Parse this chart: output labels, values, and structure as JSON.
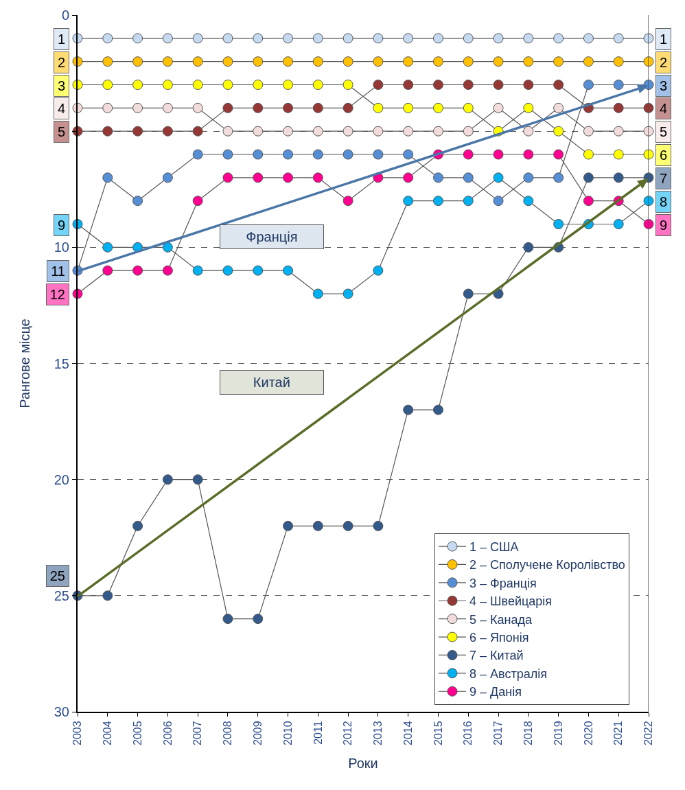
{
  "chart_data": {
    "type": "line",
    "xlabel": "Роки",
    "ylabel": "Рангове місце",
    "x": [
      2003,
      2004,
      2005,
      2006,
      2007,
      2008,
      2009,
      2010,
      2011,
      2012,
      2013,
      2014,
      2015,
      2016,
      2017,
      2018,
      2019,
      2020,
      2021,
      2022
    ],
    "xlim": [
      2003,
      2022
    ],
    "xticks": [
      2003,
      2004,
      2005,
      2006,
      2007,
      2008,
      2009,
      2010,
      2011,
      2012,
      2013,
      2014,
      2015,
      2016,
      2017,
      2018,
      2019,
      2020,
      2021,
      2022
    ],
    "ylim": [
      30,
      0
    ],
    "yticks": [
      0,
      {
        "value": 5,
        "label": null
      },
      10,
      15,
      20,
      25,
      30
    ],
    "grid": "y",
    "legend": "bottom right",
    "marker": "circle",
    "series": [
      {
        "name": "1 – США",
        "color": "#c5d9f1",
        "values": [
          1,
          1,
          1,
          1,
          1,
          1,
          1,
          1,
          1,
          1,
          1,
          1,
          1,
          1,
          1,
          1,
          1,
          1,
          1,
          1
        ],
        "value_labels": [
          "1",
          null,
          null,
          null,
          null,
          null,
          null,
          null,
          null,
          null,
          null,
          null,
          null,
          null,
          null,
          null,
          null,
          null,
          null,
          "1"
        ]
      },
      {
        "name": "2 – Сполучене Королівство",
        "color": "#ffc000",
        "values": [
          2,
          2,
          2,
          2,
          2,
          2,
          2,
          2,
          2,
          2,
          2,
          2,
          2,
          2,
          2,
          2,
          2,
          2,
          2,
          2
        ],
        "value_labels": [
          "2",
          null,
          null,
          null,
          null,
          null,
          null,
          null,
          null,
          null,
          null,
          null,
          null,
          null,
          null,
          null,
          null,
          null,
          null,
          "2"
        ]
      },
      {
        "name": "3 – Франція",
        "color": "#558ed5",
        "values": [
          11,
          7,
          8,
          7,
          6,
          6,
          6,
          6,
          6,
          6,
          6,
          6,
          7,
          7,
          8,
          7,
          7,
          3,
          3,
          3
        ],
        "value_labels": [
          "11",
          null,
          null,
          null,
          null,
          null,
          null,
          null,
          null,
          null,
          null,
          null,
          null,
          null,
          null,
          null,
          null,
          null,
          null,
          "3"
        ]
      },
      {
        "name": "4 – Швейцарія",
        "color": "#953735",
        "values": [
          5,
          5,
          5,
          5,
          5,
          4,
          4,
          4,
          4,
          4,
          3,
          3,
          3,
          3,
          3,
          3,
          3,
          4,
          4,
          4
        ],
        "value_labels": [
          "5",
          null,
          null,
          null,
          null,
          null,
          null,
          null,
          null,
          null,
          null,
          null,
          null,
          null,
          null,
          null,
          null,
          null,
          null,
          "4"
        ]
      },
      {
        "name": "5 – Канада",
        "color": "#f2dcdb",
        "values": [
          4,
          4,
          4,
          4,
          4,
          5,
          5,
          5,
          5,
          5,
          5,
          5,
          5,
          5,
          4,
          5,
          4,
          5,
          5,
          5
        ],
        "value_labels": [
          "4",
          null,
          null,
          null,
          null,
          null,
          null,
          null,
          null,
          null,
          null,
          null,
          null,
          null,
          null,
          null,
          null,
          null,
          null,
          "5"
        ]
      },
      {
        "name": "6 – Японія",
        "color": "#ffff00",
        "values": [
          3,
          3,
          3,
          3,
          3,
          3,
          3,
          3,
          3,
          3,
          4,
          4,
          4,
          4,
          5,
          4,
          5,
          6,
          6,
          6
        ],
        "value_labels": [
          "3",
          null,
          null,
          null,
          null,
          null,
          null,
          null,
          null,
          null,
          null,
          null,
          null,
          null,
          null,
          null,
          null,
          null,
          null,
          "6"
        ]
      },
      {
        "name": "7 – Китай",
        "color": "#335a8a",
        "values": [
          25,
          25,
          22,
          20,
          20,
          26,
          26,
          22,
          22,
          22,
          22,
          17,
          17,
          12,
          12,
          10,
          10,
          7,
          7,
          7
        ],
        "value_labels": [
          "25",
          null,
          null,
          null,
          null,
          null,
          null,
          null,
          null,
          null,
          null,
          null,
          null,
          null,
          null,
          null,
          null,
          null,
          null,
          "7"
        ]
      },
      {
        "name": "8 – Австралія",
        "color": "#00b0f0",
        "values": [
          9,
          10,
          10,
          10,
          11,
          11,
          11,
          11,
          12,
          12,
          11,
          8,
          8,
          8,
          7,
          8,
          9,
          9,
          9,
          8
        ],
        "value_labels": [
          "9",
          null,
          null,
          null,
          null,
          null,
          null,
          null,
          null,
          null,
          null,
          null,
          null,
          null,
          null,
          null,
          null,
          null,
          null,
          "8"
        ]
      },
      {
        "name": "9 – Данія",
        "color": "#ff0090",
        "values": [
          12,
          11,
          11,
          11,
          8,
          7,
          7,
          7,
          7,
          8,
          7,
          7,
          6,
          6,
          6,
          6,
          6,
          8,
          8,
          9
        ],
        "value_labels": [
          "12",
          null,
          null,
          null,
          null,
          null,
          null,
          null,
          null,
          null,
          null,
          null,
          null,
          null,
          null,
          null,
          null,
          null,
          null,
          "9"
        ]
      }
    ],
    "annotations": [
      "Франція",
      "Китай"
    ]
  }
}
